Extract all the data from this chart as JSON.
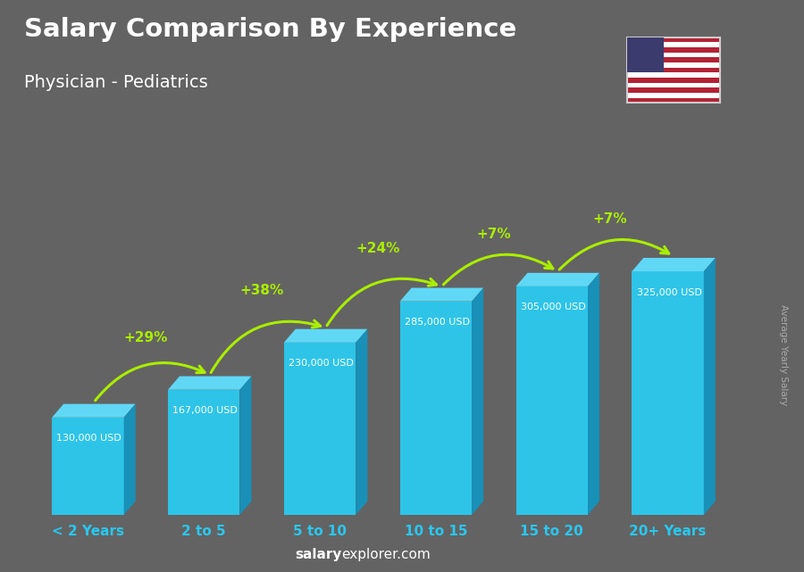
{
  "title": "Salary Comparison By Experience",
  "subtitle": "Physician - Pediatrics",
  "categories": [
    "< 2 Years",
    "2 to 5",
    "5 to 10",
    "10 to 15",
    "15 to 20",
    "20+ Years"
  ],
  "values": [
    130000,
    167000,
    230000,
    285000,
    305000,
    325000
  ],
  "value_labels": [
    "130,000 USD",
    "167,000 USD",
    "230,000 USD",
    "285,000 USD",
    "305,000 USD",
    "325,000 USD"
  ],
  "pct_changes": [
    "+29%",
    "+38%",
    "+24%",
    "+7%",
    "+7%"
  ],
  "bar_color_face": "#2ec4e8",
  "bar_color_light": "#60d8f5",
  "bar_color_dark": "#1890b8",
  "bg_color": "#636363",
  "title_color": "#ffffff",
  "subtitle_color": "#ffffff",
  "value_label_color": "#ffffff",
  "pct_color": "#aaee00",
  "xlabel_color": "#29c8f0",
  "footer_salary_color": "#ffffff",
  "footer_explorer_color": "#cccccc",
  "ylabel_text": "Average Yearly Salary",
  "ylabel_color": "#aaaaaa",
  "ylim_max": 420000,
  "footer_text_salary": "salary",
  "footer_text_rest": "explorer.com"
}
